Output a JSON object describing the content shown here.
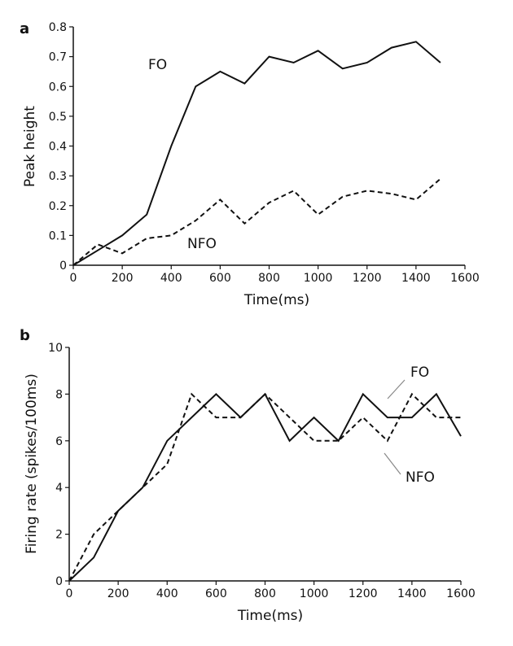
{
  "chart_data": [
    {
      "type": "line",
      "panel_label": "a",
      "xlabel": "Time(ms)",
      "ylabel": "Peak height",
      "xlim": [
        0,
        1600
      ],
      "ylim": [
        0,
        0.8
      ],
      "x_ticks": [
        "0",
        "200",
        "400",
        "600",
        "800",
        "1000",
        "1200",
        "1400",
        "1600"
      ],
      "y_ticks": [
        "0",
        "0.1",
        "0.2",
        "0.3",
        "0.4",
        "0.5",
        "0.6",
        "0.7",
        "0.8"
      ],
      "grid": false,
      "series": [
        {
          "name": "FO",
          "style": "solid",
          "x": [
            0,
            100,
            200,
            300,
            400,
            500,
            600,
            700,
            800,
            900,
            1000,
            1100,
            1200,
            1300,
            1400,
            1500
          ],
          "y": [
            0,
            0.05,
            0.1,
            0.17,
            0.4,
            0.6,
            0.65,
            0.61,
            0.7,
            0.68,
            0.72,
            0.66,
            0.68,
            0.73,
            0.75,
            0.68
          ]
        },
        {
          "name": "NFO",
          "style": "dashed",
          "x": [
            0,
            100,
            200,
            300,
            400,
            500,
            600,
            700,
            800,
            900,
            1000,
            1100,
            1200,
            1300,
            1400,
            1500
          ],
          "y": [
            0,
            0.07,
            0.04,
            0.09,
            0.1,
            0.15,
            0.22,
            0.14,
            0.21,
            0.25,
            0.17,
            0.23,
            0.25,
            0.24,
            0.22,
            0.29
          ]
        }
      ]
    },
    {
      "type": "line",
      "panel_label": "b",
      "xlabel": "Time(ms)",
      "ylabel": "Firing rate (spikes/100ms)",
      "xlim": [
        0,
        1600
      ],
      "ylim": [
        0,
        10
      ],
      "x_ticks": [
        "0",
        "200",
        "400",
        "600",
        "800",
        "1000",
        "1200",
        "1400",
        "1600"
      ],
      "y_ticks": [
        "0",
        "2",
        "4",
        "6",
        "8",
        "10"
      ],
      "grid": false,
      "series": [
        {
          "name": "FO",
          "style": "solid",
          "x": [
            0,
            100,
            200,
            300,
            400,
            500,
            600,
            700,
            800,
            900,
            1000,
            1100,
            1200,
            1300,
            1400,
            1500,
            1600
          ],
          "y": [
            0,
            1,
            3,
            4,
            6,
            7,
            8,
            7,
            8,
            6,
            7,
            6,
            8,
            7,
            7,
            8,
            6.2
          ]
        },
        {
          "name": "NFO",
          "style": "dashed",
          "x": [
            0,
            100,
            200,
            300,
            400,
            500,
            600,
            700,
            800,
            900,
            1000,
            1100,
            1200,
            1300,
            1400,
            1500,
            1600
          ],
          "y": [
            0,
            2,
            3,
            4,
            5,
            8,
            7,
            7,
            8,
            7,
            6,
            6,
            7,
            6,
            8,
            7,
            7
          ]
        }
      ]
    }
  ]
}
